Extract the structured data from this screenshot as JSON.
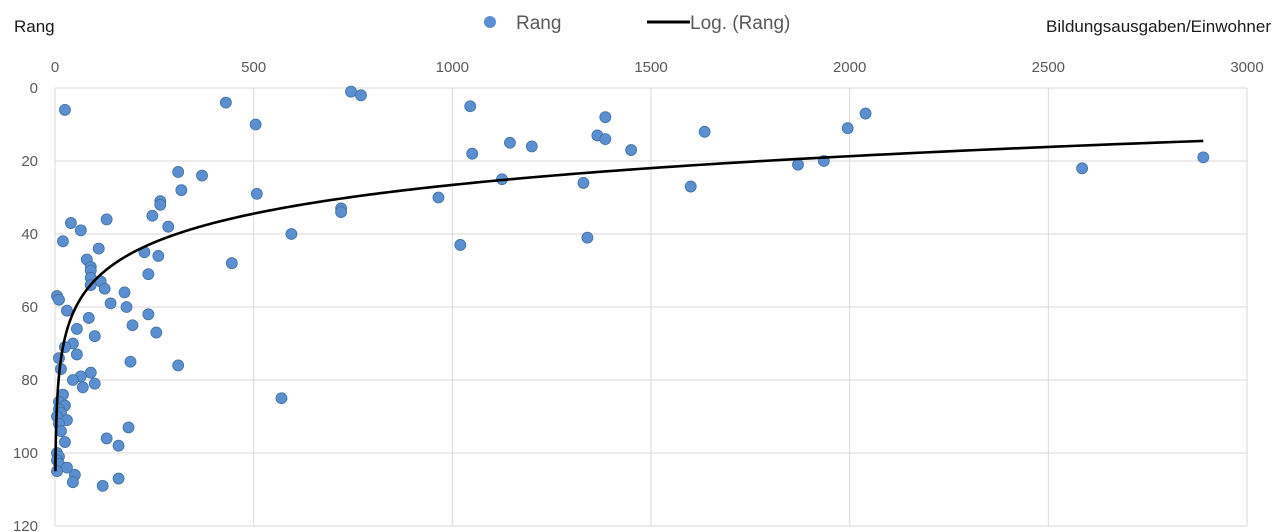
{
  "chart_data": {
    "type": "scatter",
    "xlabel": "Bildungsausgaben/Einwohner",
    "ylabel": "Rang",
    "xlim": [
      0,
      3000
    ],
    "ylim": [
      0,
      120
    ],
    "y_reversed": true,
    "x_ticks": [
      0,
      500,
      1000,
      1500,
      2000,
      2500,
      3000
    ],
    "y_ticks": [
      0,
      20,
      40,
      60,
      80,
      100,
      120
    ],
    "grid": true,
    "legend_position": "top",
    "colors": {
      "points": "#5b8fd1",
      "point_stroke": "#41719c",
      "trend": "#000000",
      "grid": "#d9d9d9"
    },
    "legend": [
      "Rang",
      "Log. (Rang)"
    ],
    "trendline": {
      "type": "log",
      "name": "Log. (Rang)",
      "x_from": 1,
      "x_to": 2890,
      "y_at_x_from": 105,
      "y_at_x_to": 14.5
    },
    "series": [
      {
        "name": "Rang",
        "points": [
          [
            25,
            6
          ],
          [
            430,
            4
          ],
          [
            745,
            1
          ],
          [
            770,
            2
          ],
          [
            505,
            10
          ],
          [
            1045,
            5
          ],
          [
            1385,
            8
          ],
          [
            1365,
            13
          ],
          [
            1385,
            14
          ],
          [
            1145,
            15
          ],
          [
            1200,
            16
          ],
          [
            1050,
            18
          ],
          [
            1450,
            17
          ],
          [
            1635,
            12
          ],
          [
            1995,
            11
          ],
          [
            2040,
            7
          ],
          [
            1870,
            21
          ],
          [
            1935,
            20
          ],
          [
            2585,
            22
          ],
          [
            2890,
            19
          ],
          [
            1125,
            25
          ],
          [
            1330,
            26
          ],
          [
            1600,
            27
          ],
          [
            965,
            30
          ],
          [
            310,
            23
          ],
          [
            370,
            24
          ],
          [
            318,
            28
          ],
          [
            508,
            29
          ],
          [
            265,
            31
          ],
          [
            265,
            32
          ],
          [
            720,
            33
          ],
          [
            720,
            34
          ],
          [
            245,
            35
          ],
          [
            40,
            37
          ],
          [
            130,
            36
          ],
          [
            285,
            38
          ],
          [
            65,
            39
          ],
          [
            595,
            40
          ],
          [
            20,
            42
          ],
          [
            1020,
            43
          ],
          [
            1340,
            41
          ],
          [
            110,
            44
          ],
          [
            225,
            45
          ],
          [
            260,
            46
          ],
          [
            80,
            47
          ],
          [
            445,
            48
          ],
          [
            90,
            49
          ],
          [
            90,
            50
          ],
          [
            235,
            51
          ],
          [
            90,
            52
          ],
          [
            115,
            53
          ],
          [
            90,
            54
          ],
          [
            125,
            55
          ],
          [
            175,
            56
          ],
          [
            5,
            57
          ],
          [
            10,
            58
          ],
          [
            140,
            59
          ],
          [
            180,
            60
          ],
          [
            30,
            61
          ],
          [
            235,
            62
          ],
          [
            85,
            63
          ],
          [
            195,
            65
          ],
          [
            55,
            66
          ],
          [
            255,
            67
          ],
          [
            100,
            68
          ],
          [
            45,
            70
          ],
          [
            25,
            71
          ],
          [
            55,
            73
          ],
          [
            10,
            74
          ],
          [
            190,
            75
          ],
          [
            310,
            76
          ],
          [
            15,
            77
          ],
          [
            90,
            78
          ],
          [
            65,
            79
          ],
          [
            45,
            80
          ],
          [
            100,
            81
          ],
          [
            70,
            82
          ],
          [
            20,
            84
          ],
          [
            570,
            85
          ],
          [
            10,
            86
          ],
          [
            25,
            87
          ],
          [
            10,
            88
          ],
          [
            15,
            89
          ],
          [
            5,
            90
          ],
          [
            30,
            91
          ],
          [
            10,
            92
          ],
          [
            185,
            93
          ],
          [
            15,
            94
          ],
          [
            130,
            96
          ],
          [
            25,
            97
          ],
          [
            160,
            98
          ],
          [
            5,
            100
          ],
          [
            10,
            101
          ],
          [
            5,
            102
          ],
          [
            10,
            103
          ],
          [
            30,
            104
          ],
          [
            5,
            105
          ],
          [
            50,
            106
          ],
          [
            160,
            107
          ],
          [
            45,
            108
          ],
          [
            120,
            109
          ]
        ]
      }
    ]
  }
}
